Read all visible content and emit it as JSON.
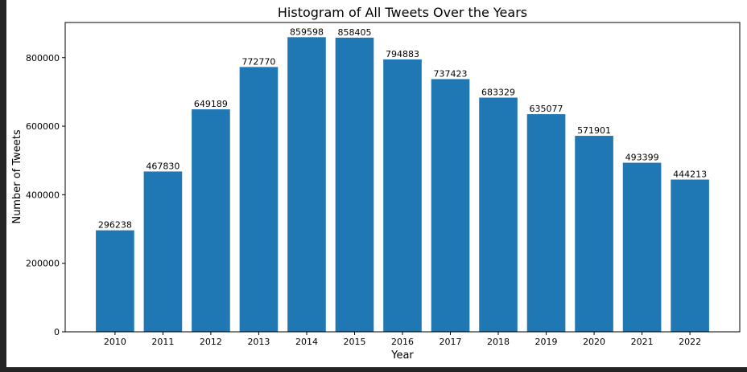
{
  "chart_data": {
    "type": "bar",
    "title": "Histogram of All Tweets Over the Years",
    "xlabel": "Year",
    "ylabel": "Number of Tweets",
    "categories": [
      "2010",
      "2011",
      "2012",
      "2013",
      "2014",
      "2015",
      "2016",
      "2017",
      "2018",
      "2019",
      "2020",
      "2021",
      "2022"
    ],
    "values": [
      296238,
      467830,
      649189,
      772770,
      859598,
      858405,
      794883,
      737423,
      683329,
      635077,
      571901,
      493399,
      444213
    ],
    "data_labels": [
      "296238",
      "467830",
      "649189",
      "772770",
      "859598",
      "858405",
      "794883",
      "737423",
      "683329",
      "635077",
      "571901",
      "493399",
      "444213"
    ],
    "ylim": [
      0,
      902578
    ],
    "yticks": [
      0,
      200000,
      400000,
      600000,
      800000
    ],
    "ytick_labels": [
      "0",
      "200000",
      "400000",
      "600000",
      "800000"
    ],
    "bar_color": "#1f77b4",
    "grid": false,
    "legend": "none"
  }
}
